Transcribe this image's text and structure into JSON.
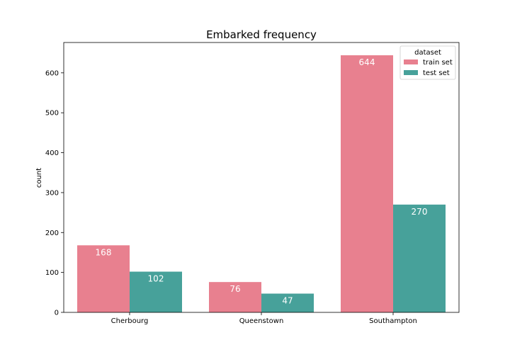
{
  "chart_data": {
    "type": "bar",
    "title": "Embarked frequency",
    "xlabel": "",
    "ylabel": "count",
    "categories": [
      "Cherbourg",
      "Queenstown",
      "Southampton"
    ],
    "series": [
      {
        "name": "train set",
        "values": [
          168,
          76,
          644
        ],
        "color": "#e8808f"
      },
      {
        "name": "test set",
        "values": [
          102,
          47,
          270
        ],
        "color": "#47a19a"
      }
    ],
    "ylim": [
      0,
      676
    ],
    "yticks": [
      0,
      100,
      200,
      300,
      400,
      500,
      600
    ],
    "legend": {
      "title": "dataset",
      "placement": "top-right"
    },
    "grid": false
  }
}
